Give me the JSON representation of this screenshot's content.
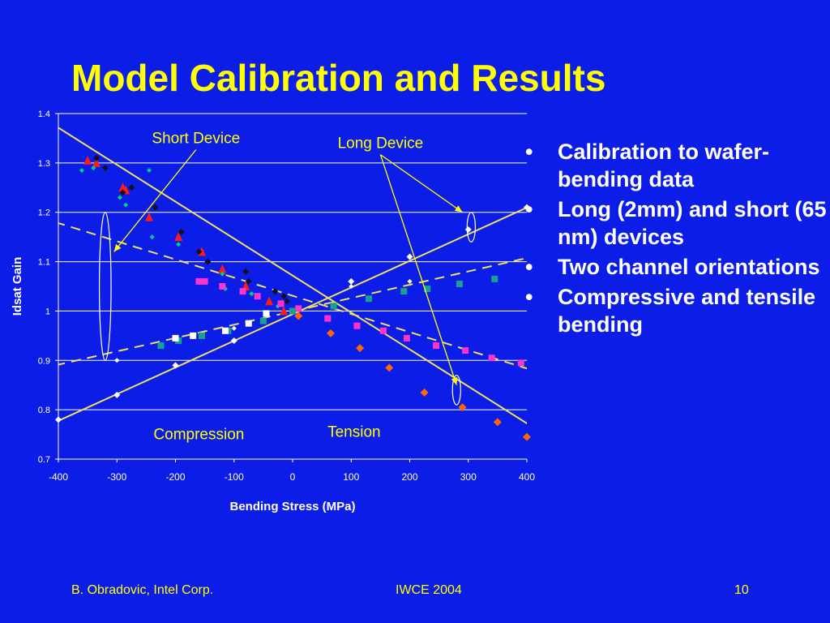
{
  "slide": {
    "title": "Model Calibration and Results",
    "bullets": [
      "Calibration to wafer-bending data",
      "Long (2mm) and short (65 nm) devices",
      "Two channel orientations",
      "Compressive and tensile bending"
    ],
    "bullet_symbol": "•",
    "footer": {
      "left": "B. Obradovic, Intel Corp.",
      "center": "IWCE 2004",
      "right": "10"
    }
  },
  "colors": {
    "background": "#0c1de8",
    "title": "#ffff00",
    "annotation_text": "#ffff00",
    "gridline": "#ffffff",
    "axis_text": "#ffffff",
    "model_line": "#f0e060"
  },
  "chart_data": {
    "type": "scatter",
    "title": "",
    "xlabel": "Bending Stress (MPa)",
    "ylabel": "Idsat Gain",
    "xlim": [
      -400,
      400
    ],
    "ylim": [
      0.7,
      1.4
    ],
    "x_ticks": [
      -400,
      -300,
      -200,
      -100,
      0,
      100,
      200,
      300,
      400
    ],
    "x_tick_labels": [
      "-400",
      "-300",
      "-200",
      "-100",
      "0",
      "100",
      "200",
      "300",
      "400"
    ],
    "y_ticks": [
      0.7,
      0.8,
      0.9,
      1.0,
      1.1,
      1.2,
      1.3,
      1.4
    ],
    "y_tick_labels": [
      "0.7",
      "0.8",
      "0.9",
      "1",
      "1.1",
      "1.2",
      "1.3",
      "1.4"
    ],
    "grid": "horizontal",
    "annotations": [
      {
        "text": "Short Device",
        "x": -165,
        "y": 1.34
      },
      {
        "text": "Long Device",
        "x": 150,
        "y": 1.33
      },
      {
        "text": "Compression",
        "x": -160,
        "y": 0.74
      },
      {
        "text": "Tension",
        "x": 105,
        "y": 0.745
      }
    ],
    "lines": [
      {
        "role": "short-device-model",
        "style": "solid",
        "color": "#f0e060",
        "x": [
          -405,
          410
        ],
        "y": [
          1.375,
          0.765
        ]
      },
      {
        "role": "long-device-model",
        "style": "dashed",
        "color": "#f0e060",
        "x": [
          -405,
          410
        ],
        "y": [
          1.18,
          0.88
        ]
      },
      {
        "role": "short-device-model",
        "style": "solid",
        "color": "#f0e060",
        "x": [
          -405,
          410
        ],
        "y": [
          0.775,
          1.215
        ]
      },
      {
        "role": "long-device-model",
        "style": "dashed",
        "color": "#f0e060",
        "x": [
          -405,
          410
        ],
        "y": [
          0.89,
          1.11
        ]
      }
    ],
    "series": [
      {
        "marker": "diamond",
        "color": "#ffffff",
        "size": 4,
        "x": [
          -400,
          -300,
          -200,
          -100,
          100,
          200,
          300,
          400
        ],
        "y": [
          0.78,
          0.83,
          0.89,
          0.94,
          1.06,
          1.11,
          1.165,
          1.21
        ]
      },
      {
        "marker": "diamond",
        "color": "#ffffff",
        "size": 3,
        "x": [
          -300,
          -100,
          100,
          200
        ],
        "y": [
          0.9,
          0.965,
          1.05,
          1.06
        ]
      },
      {
        "marker": "triangle",
        "color": "#ff1a1a",
        "size": 5,
        "x": [
          -350,
          -335,
          -290,
          -285,
          -245,
          -195,
          -155,
          -120,
          -80,
          -40,
          -15
        ],
        "y": [
          1.305,
          1.3,
          1.25,
          1.245,
          1.19,
          1.15,
          1.12,
          1.085,
          1.05,
          1.02,
          1.0
        ]
      },
      {
        "marker": "diamond",
        "color": "#101020",
        "size": 4,
        "x": [
          -335,
          -320,
          -290,
          -275,
          -235,
          -190,
          -160,
          -145,
          -80,
          -75,
          -30,
          -15,
          -10
        ],
        "y": [
          1.31,
          1.29,
          1.24,
          1.25,
          1.21,
          1.16,
          1.12,
          1.1,
          1.08,
          1.06,
          1.04,
          1.03,
          1.02
        ]
      },
      {
        "marker": "diamond",
        "color": "#00d084",
        "size": 3,
        "x": [
          -360,
          -340,
          -295,
          -285,
          -245,
          -240,
          -195,
          -155,
          -120,
          -115,
          -70,
          -25
        ],
        "y": [
          1.285,
          1.29,
          1.23,
          1.215,
          1.285,
          1.15,
          1.135,
          1.06,
          1.075,
          1.045,
          1.035,
          1.01
        ]
      },
      {
        "marker": "square",
        "color": "#ff33cc",
        "size": 4,
        "x": [
          -160,
          -150,
          -120,
          -85,
          -60,
          -20,
          10,
          60,
          110,
          155,
          195,
          245,
          295,
          340,
          390
        ],
        "y": [
          1.06,
          1.06,
          1.05,
          1.04,
          1.03,
          1.015,
          1.005,
          0.985,
          0.97,
          0.96,
          0.945,
          0.93,
          0.92,
          0.905,
          0.895
        ]
      },
      {
        "marker": "diamond",
        "color": "#ff6600",
        "size": 5,
        "x": [
          10,
          65,
          115,
          165,
          225,
          290,
          350,
          400
        ],
        "y": [
          0.99,
          0.955,
          0.925,
          0.885,
          0.835,
          0.805,
          0.775,
          0.745
        ]
      },
      {
        "marker": "square",
        "color": "#1aa090",
        "size": 4,
        "x": [
          -225,
          -195,
          -155,
          -110,
          -50,
          0,
          70,
          130,
          190,
          230,
          285,
          345
        ],
        "y": [
          0.93,
          0.94,
          0.95,
          0.96,
          0.98,
          1.0,
          1.01,
          1.025,
          1.04,
          1.045,
          1.055,
          1.065
        ]
      },
      {
        "marker": "square",
        "color": "#ffffff",
        "size": 4,
        "x": [
          -200,
          -170,
          -115,
          -75,
          -45
        ],
        "y": [
          0.945,
          0.95,
          0.96,
          0.975,
          0.995
        ]
      }
    ],
    "callouts": [
      {
        "label_index": 0,
        "to": [
          -305,
          1.12
        ]
      },
      {
        "label_index": 1,
        "to": [
          290,
          1.2
        ]
      },
      {
        "label_index": 1,
        "to": [
          280,
          0.85
        ]
      }
    ],
    "highlight_ellipses": [
      {
        "x": -320,
        "y": 1.05,
        "rx": 10,
        "ry": 0.15
      },
      {
        "x": 305,
        "y": 1.17,
        "rx": 7,
        "ry": 0.03
      },
      {
        "x": 280,
        "y": 0.84,
        "rx": 7,
        "ry": 0.03
      }
    ]
  }
}
